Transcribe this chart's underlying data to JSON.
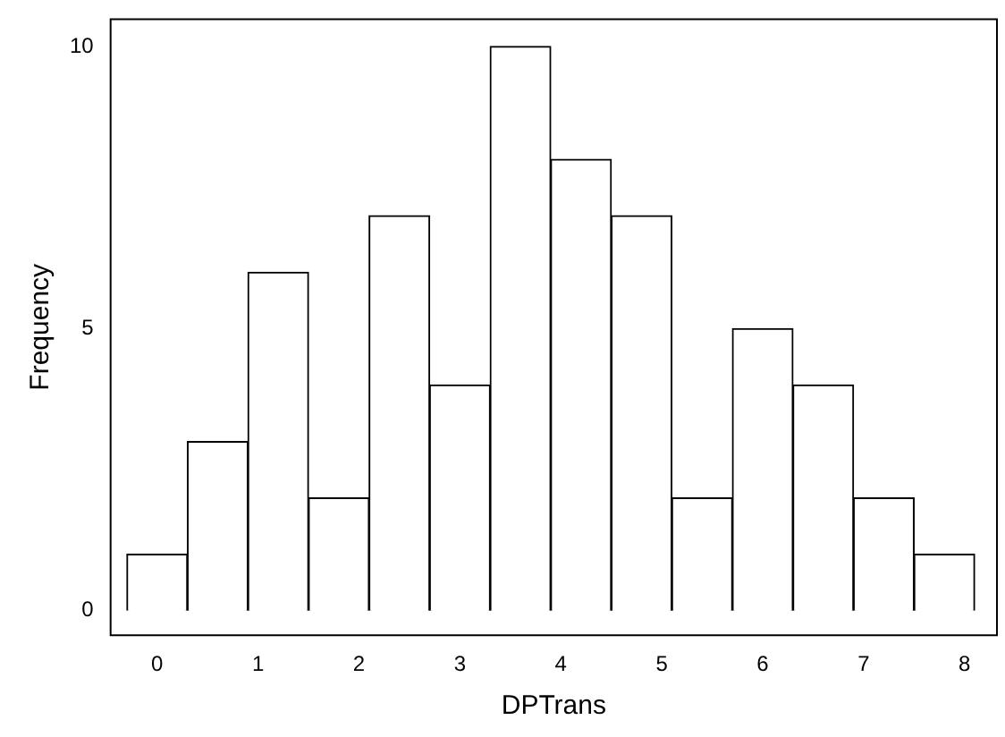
{
  "chart_data": {
    "type": "histogram",
    "xlabel": "DPTrans",
    "ylabel": "Frequency",
    "bins": [
      -0.3,
      0.3,
      0.9,
      1.5,
      2.1,
      2.7,
      3.3,
      3.9,
      4.5,
      5.1,
      5.7,
      6.3,
      6.9,
      7.5,
      8.1
    ],
    "values": [
      1,
      3,
      6,
      2,
      7,
      4,
      10,
      8,
      7,
      2,
      5,
      4,
      2,
      1
    ],
    "color": "#ffffff",
    "xlim": [
      -0.47,
      8.33
    ],
    "ylim": [
      -0.45,
      10.5
    ],
    "xticks": [
      0,
      1,
      2,
      3,
      4,
      5,
      6,
      7,
      8
    ],
    "yticks": [
      0,
      5,
      10
    ],
    "grid": false,
    "legend": false
  }
}
